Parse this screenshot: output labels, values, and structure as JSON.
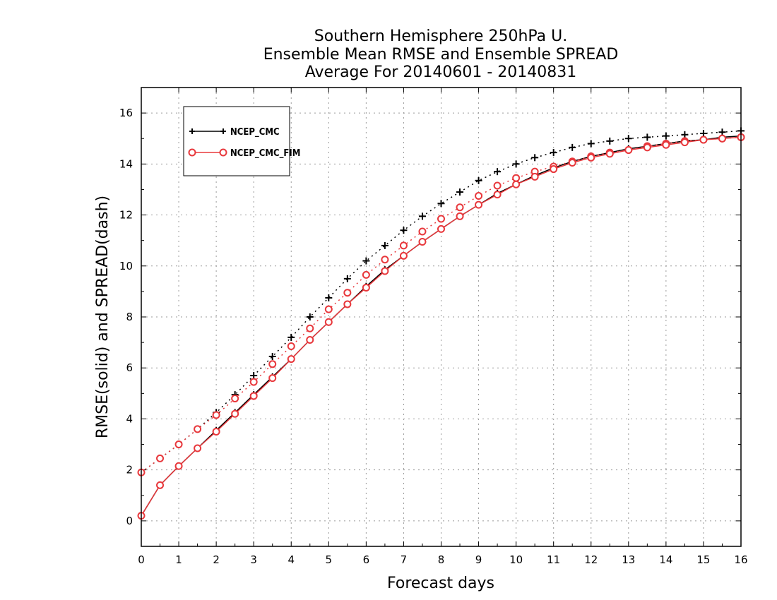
{
  "chart_data": {
    "type": "line",
    "title": [
      "Southern Hemisphere 250hPa U.",
      "Ensemble Mean RMSE and Ensemble SPREAD",
      "Average For 20140601 - 20140831"
    ],
    "xlabel": "Forecast days",
    "ylabel": "RMSE(solid) and SPREAD(dash)",
    "xlim": [
      0,
      16
    ],
    "ylim": [
      -1,
      17
    ],
    "xticks": [
      "0",
      "1",
      "2",
      "3",
      "4",
      "5",
      "6",
      "7",
      "8",
      "9",
      "10",
      "11",
      "12",
      "13",
      "14",
      "15",
      "16"
    ],
    "yticks": [
      "0",
      "2",
      "4",
      "6",
      "8",
      "10",
      "12",
      "14",
      "16"
    ],
    "grid": true,
    "legend_position": "top-left",
    "x": [
      0,
      0.5,
      1,
      1.5,
      2,
      2.5,
      3,
      3.5,
      4,
      4.5,
      5,
      5.5,
      6,
      6.5,
      7,
      7.5,
      8,
      8.5,
      9,
      9.5,
      10,
      10.5,
      11,
      11.5,
      12,
      12.5,
      13,
      13.5,
      14,
      14.5,
      15,
      15.5,
      16
    ],
    "series": [
      {
        "name": "NCEP_CMC",
        "color": "#000000",
        "marker": "plus",
        "rmse": [
          0.2,
          1.4,
          2.15,
          2.85,
          3.55,
          4.25,
          4.95,
          5.65,
          6.35,
          7.1,
          7.8,
          8.5,
          9.2,
          9.85,
          10.4,
          10.95,
          11.45,
          11.95,
          12.4,
          12.85,
          13.2,
          13.55,
          13.85,
          14.1,
          14.3,
          14.45,
          14.6,
          14.7,
          14.8,
          14.9,
          14.95,
          15.05,
          15.1
        ],
        "spread": [
          1.9,
          2.45,
          3.0,
          3.6,
          4.25,
          4.95,
          5.7,
          6.45,
          7.2,
          8.0,
          8.75,
          9.5,
          10.2,
          10.8,
          11.4,
          11.95,
          12.45,
          12.9,
          13.35,
          13.7,
          14.0,
          14.25,
          14.45,
          14.65,
          14.8,
          14.9,
          15.0,
          15.05,
          15.1,
          15.15,
          15.2,
          15.25,
          15.3
        ]
      },
      {
        "name": "NCEP_CMC_FIM",
        "color": "#e8383c",
        "marker": "circle",
        "rmse": [
          0.2,
          1.4,
          2.15,
          2.85,
          3.5,
          4.2,
          4.9,
          5.6,
          6.35,
          7.1,
          7.8,
          8.5,
          9.15,
          9.8,
          10.4,
          10.95,
          11.45,
          11.95,
          12.4,
          12.8,
          13.2,
          13.5,
          13.8,
          14.05,
          14.25,
          14.4,
          14.55,
          14.65,
          14.75,
          14.85,
          14.95,
          15.0,
          15.05
        ],
        "spread": [
          1.9,
          2.45,
          3.0,
          3.6,
          4.15,
          4.8,
          5.45,
          6.15,
          6.85,
          7.55,
          8.3,
          8.95,
          9.65,
          10.25,
          10.8,
          11.35,
          11.85,
          12.3,
          12.75,
          13.15,
          13.45,
          13.7,
          13.9,
          14.1,
          14.3,
          14.45,
          14.55,
          14.7,
          14.8,
          14.9,
          14.95,
          15.0,
          15.05
        ]
      }
    ]
  }
}
